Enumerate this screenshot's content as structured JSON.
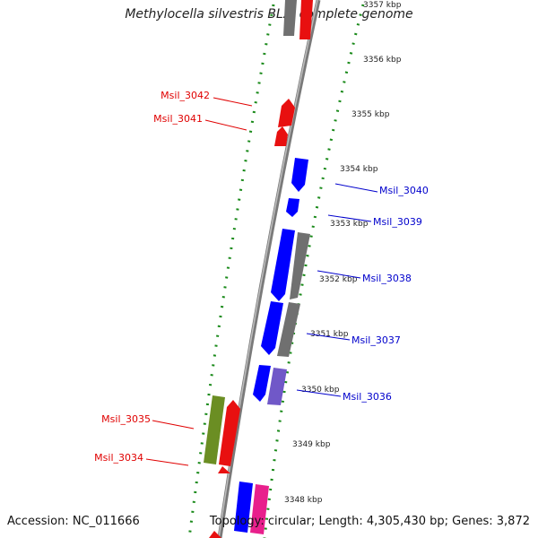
{
  "title": "Methylocella silvestris BL2, complete genome",
  "footer": {
    "accession": "Accession: NC_011666",
    "summary": "Topology: circular; Length: 4,305,430 bp; Genes: 3,872"
  },
  "colors": {
    "forward_label": "#e00000",
    "reverse_label": "#0000cc",
    "backbone": "#808080",
    "tick_dots": "#1a8a1a"
  },
  "ticks": [
    "3357 kbp",
    "3356 kbp",
    "3355 kbp",
    "3354 kbp",
    "3353 kbp",
    "3352 kbp",
    "3351 kbp",
    "3350 kbp",
    "3349 kbp",
    "3348 kbp"
  ],
  "forward_genes": [
    "Msil_3042",
    "Msil_3041",
    "Msil_3035",
    "Msil_3034"
  ],
  "reverse_genes": [
    "Msil_3040",
    "Msil_3039",
    "Msil_3038",
    "Msil_3037",
    "Msil_3036"
  ]
}
